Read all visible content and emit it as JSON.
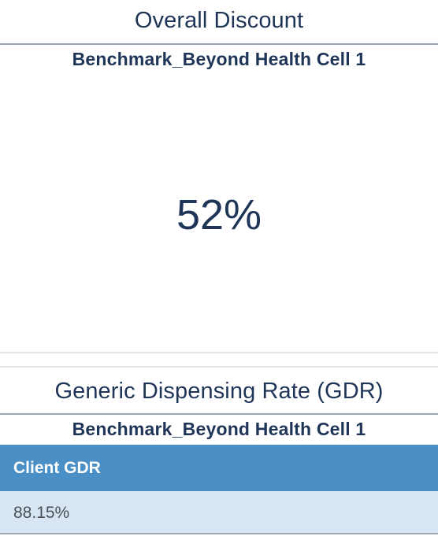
{
  "overall_discount": {
    "title": "Overall Discount",
    "subtitle": "Benchmark_Beyond Health Cell 1",
    "value": "52%"
  },
  "gdr": {
    "title": "Generic Dispensing Rate (GDR)",
    "subtitle": "Benchmark_Beyond Health Cell 1",
    "table": {
      "header": "Client GDR",
      "rows": [
        "88.15%"
      ]
    }
  },
  "colors": {
    "heading_text": "#1f3557",
    "table_header_bg": "#4a90c6",
    "table_row_bg": "#d7e6f2"
  }
}
